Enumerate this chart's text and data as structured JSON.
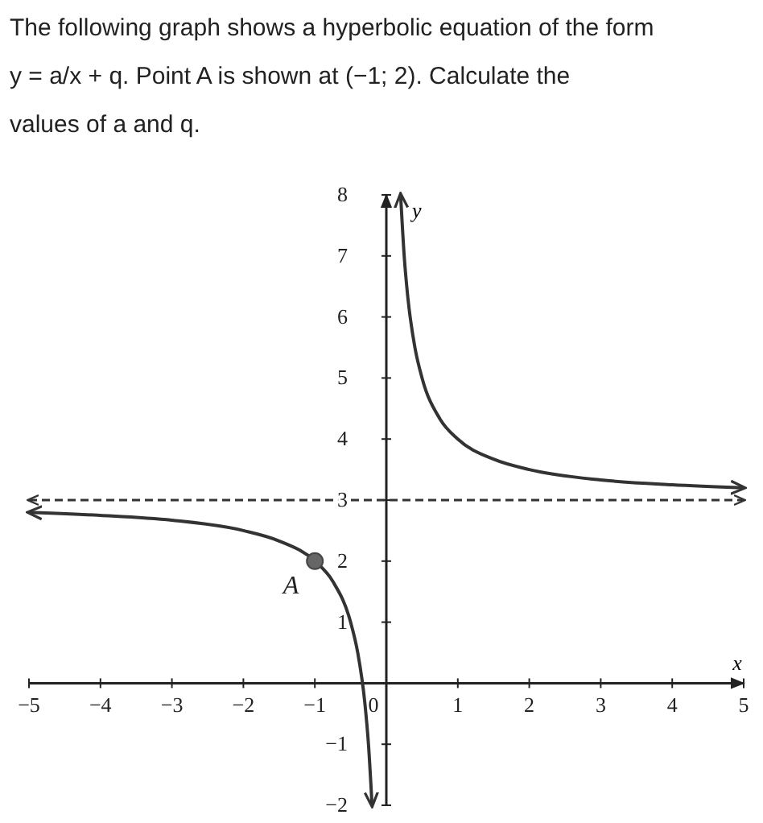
{
  "chart_data": {
    "type": "line",
    "title": "The following graph shows a hyperbolic equation of the form y = a/x + q. Point A is shown at (−1; 2). Calculate the values of a and q.",
    "xlabel": "x",
    "ylabel": "y",
    "xlim": [
      -5,
      5
    ],
    "ylim": [
      -2,
      8
    ],
    "xticks": [
      -5,
      -4,
      -3,
      -2,
      -1,
      0,
      1,
      2,
      3,
      4,
      5
    ],
    "yticks": [
      -2,
      -1,
      1,
      2,
      3,
      4,
      5,
      6,
      7,
      8
    ],
    "grid": false,
    "marker": "none",
    "line_style": "solid",
    "series": [
      {
        "color": "#333333",
        "x": [
          -5,
          -4,
          -3,
          -2,
          -1.5,
          -1,
          -0.75,
          -0.5,
          -0.4,
          -0.3,
          -0.25,
          -0.2
        ],
        "values": [
          2.8,
          2.75,
          2.67,
          2.5,
          2.33,
          2,
          1.67,
          1,
          0.5,
          -0.33,
          -1,
          -2
        ]
      },
      {
        "color": "#333333",
        "x": [
          0.2,
          0.25,
          0.3,
          0.4,
          0.5,
          0.75,
          1,
          1.5,
          2,
          3,
          4,
          5
        ],
        "values": [
          8,
          7,
          6.33,
          5.5,
          5,
          4.33,
          4,
          3.67,
          3.5,
          3.33,
          3.25,
          3.2
        ]
      },
      {
        "type": "scatter",
        "color": "#666666",
        "marker": "circle",
        "x": [
          -1
        ],
        "values": [
          2
        ]
      }
    ],
    "ref_lines": [
      {
        "axis": "y",
        "value": 3,
        "label": null,
        "color": "#333333",
        "line_style": "dashed"
      }
    ],
    "annotations": [
      {
        "text": "A",
        "x": -1,
        "y": 2
      }
    ]
  }
}
